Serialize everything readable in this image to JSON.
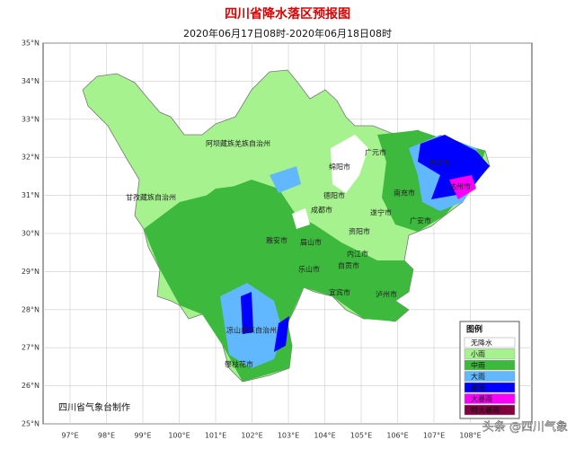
{
  "header": {
    "title": "四川省降水落区预报图",
    "subtitle": "2020年06月17日08时-2020年06月18日08时"
  },
  "map": {
    "lat_labels": [
      "35°N",
      "34°N",
      "33°N",
      "32°N",
      "31°N",
      "30°N",
      "29°N",
      "28°N",
      "27°N",
      "26°N",
      "25°N"
    ],
    "lon_labels": [
      "97°E",
      "98°E",
      "99°E",
      "100°E",
      "101°E",
      "102°E",
      "103°E",
      "104°E",
      "105°E",
      "106°E",
      "107°E",
      "108°E"
    ],
    "places": [
      "阿坝藏族羌族自治州",
      "甘孜藏族自治州",
      "绵阳市",
      "广元市",
      "巴中市",
      "达州市",
      "南充市",
      "德阳市",
      "成都市",
      "遂宁市",
      "广安市",
      "资阳市",
      "雅安市",
      "眉山市",
      "内江市",
      "乐山市",
      "自贡市",
      "宜宾市",
      "泸州市",
      "凉山彝族自治州",
      "攀枝花市"
    ]
  },
  "legend": {
    "title": "图例",
    "items": [
      {
        "label": "无降水",
        "color": "#ffffff"
      },
      {
        "label": "小雨",
        "color": "#a6f28f"
      },
      {
        "label": "中雨",
        "color": "#3dba3d"
      },
      {
        "label": "大雨",
        "color": "#61b8ff"
      },
      {
        "label": "暴雨",
        "color": "#0000fe"
      },
      {
        "label": "大暴雨",
        "color": "#fa00fa"
      },
      {
        "label": "特大暴雨",
        "color": "#800040"
      }
    ]
  },
  "credit": "四川省气象台制作",
  "watermark": "头条 @四川气象"
}
